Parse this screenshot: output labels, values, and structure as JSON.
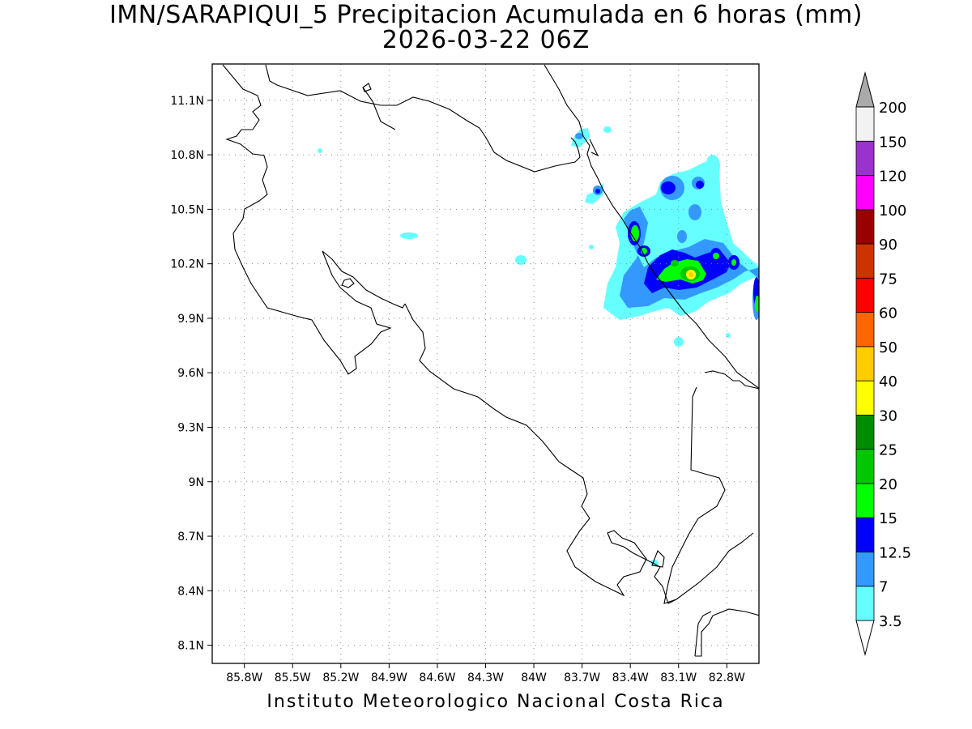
{
  "title": "IMN/SARAPIQUI_5 Precipitacion Acumulada en 6 horas (mm)",
  "subtitle": "2026-03-22 06Z",
  "credit": "Instituto Meteorologico Nacional Costa Rica",
  "map": {
    "lon_range": [
      -86.0,
      -82.6
    ],
    "lat_range": [
      8.0,
      11.3
    ],
    "lon_ticks": [
      "85.8W",
      "85.5W",
      "85.2W",
      "84.9W",
      "84.6W",
      "84.3W",
      "84W",
      "83.7W",
      "83.4W",
      "83.1W",
      "82.8W"
    ],
    "lat_ticks": [
      "11.1N",
      "10.8N",
      "10.5N",
      "10.2N",
      "9.9N",
      "9.6N",
      "9.3N",
      "9N",
      "8.7N",
      "8.4N",
      "8.1N"
    ],
    "grid": "dotted"
  },
  "legend": {
    "labels": [
      "3.5",
      "7",
      "12.5",
      "15",
      "20",
      "25",
      "30",
      "40",
      "50",
      "60",
      "75",
      "90",
      "100",
      "120",
      "150",
      "200"
    ],
    "colors": [
      "#ffffff",
      "#66ffff",
      "#3399ff",
      "#0000ff",
      "#00ff00",
      "#00c800",
      "#008c00",
      "#ffff00",
      "#ffcc00",
      "#ff6600",
      "#ff0000",
      "#cc3300",
      "#990000",
      "#ff00ff",
      "#9933cc",
      "#f2f2f2",
      "#aaaaaa"
    ],
    "colors_note_order": "bottom-to-top"
  }
}
